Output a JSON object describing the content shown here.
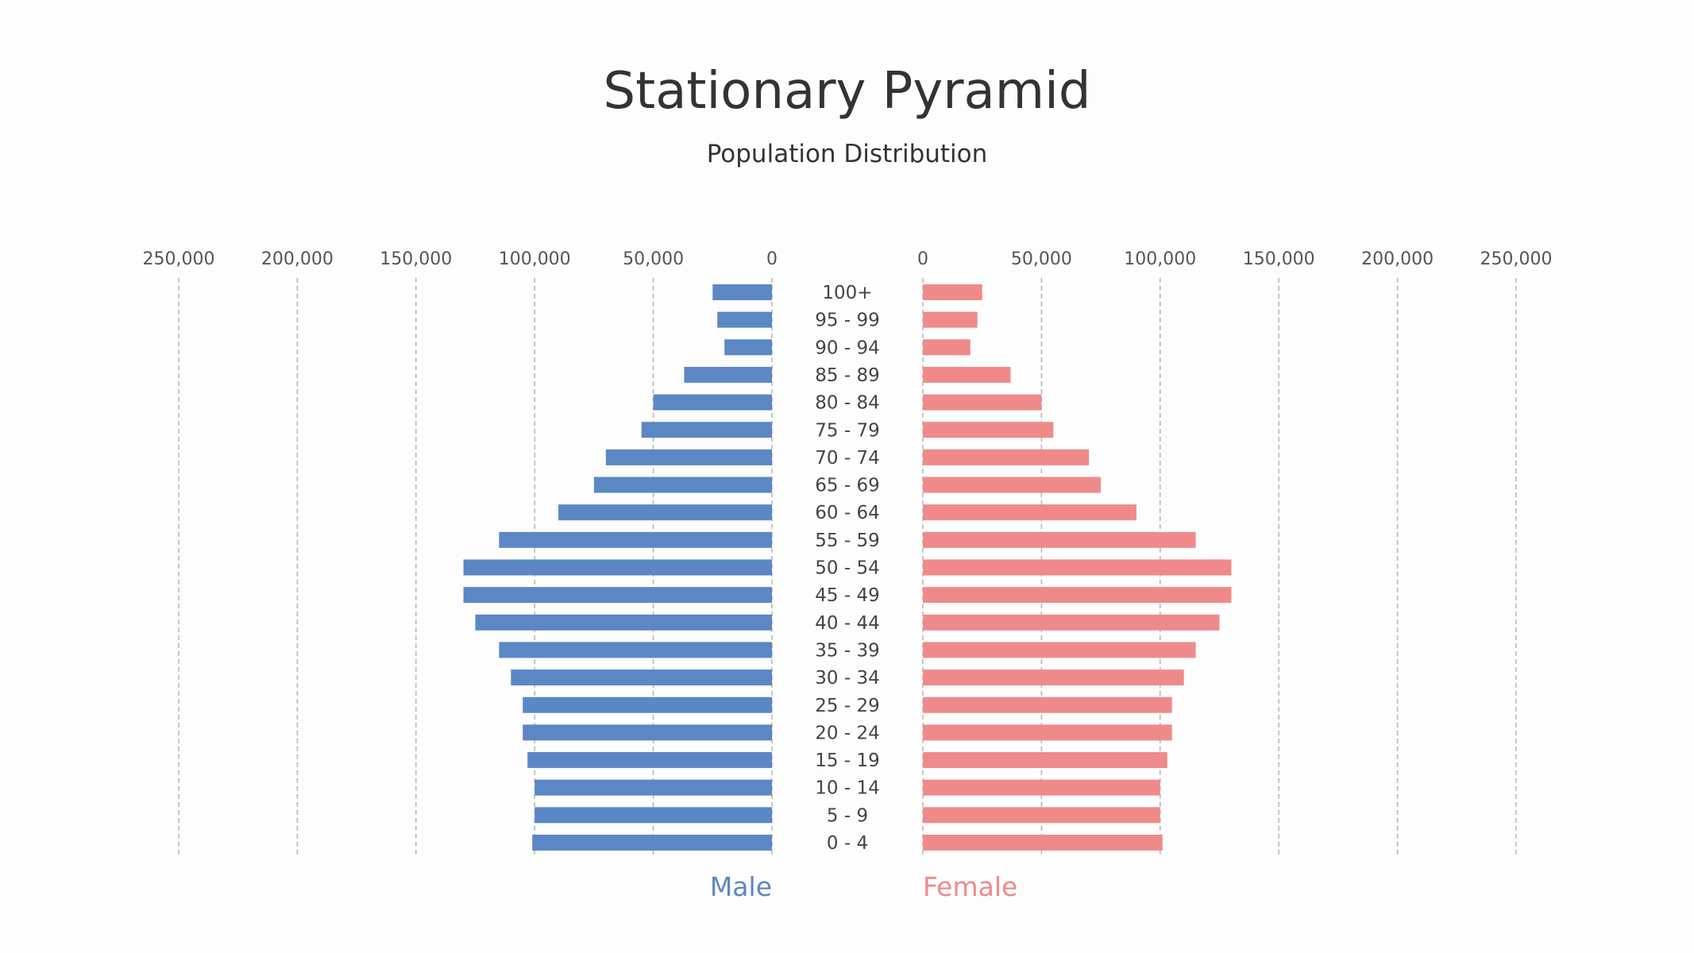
{
  "header": {
    "title": "Stationary Pyramid",
    "subtitle": "Population Distribution"
  },
  "chart_data": {
    "type": "bar",
    "orientation": "horizontal-pyramid",
    "title": "Stationary Pyramid",
    "subtitle": "Population Distribution",
    "categories": [
      "100+",
      "95 - 99",
      "90 - 94",
      "85 - 89",
      "80 - 84",
      "75 - 79",
      "70 - 74",
      "65 - 69",
      "60 - 64",
      "55 - 59",
      "50 - 54",
      "45 - 49",
      "40 - 44",
      "35 - 39",
      "30 - 34",
      "25 - 29",
      "20 - 24",
      "15 - 19",
      "10 - 14",
      "5 - 9",
      "0 - 4"
    ],
    "series": [
      {
        "name": "Male",
        "color": "#5b87c5",
        "values": [
          25000,
          23000,
          20000,
          37000,
          50000,
          55000,
          70000,
          75000,
          90000,
          115000,
          130000,
          130000,
          125000,
          115000,
          110000,
          105000,
          105000,
          103000,
          100000,
          100000,
          101000
        ]
      },
      {
        "name": "Female",
        "color": "#f08a8a",
        "values": [
          25000,
          23000,
          20000,
          37000,
          50000,
          55000,
          70000,
          75000,
          90000,
          115000,
          130000,
          130000,
          125000,
          115000,
          110000,
          105000,
          105000,
          103000,
          100000,
          100000,
          101000
        ]
      }
    ],
    "xlim": [
      0,
      250000
    ],
    "ticks": [
      "250,000",
      "200,000",
      "150,000",
      "100,000",
      "50,000",
      "0"
    ],
    "tick_values": [
      250000,
      200000,
      150000,
      100000,
      50000,
      0
    ],
    "right_ticks": [
      "0",
      "50,000",
      "100,000",
      "150,000",
      "200,000",
      "250,000"
    ],
    "right_tick_values": [
      0,
      50000,
      100000,
      150000,
      200000,
      250000
    ],
    "grid": "vertical-dashed",
    "legend": "bottom"
  }
}
